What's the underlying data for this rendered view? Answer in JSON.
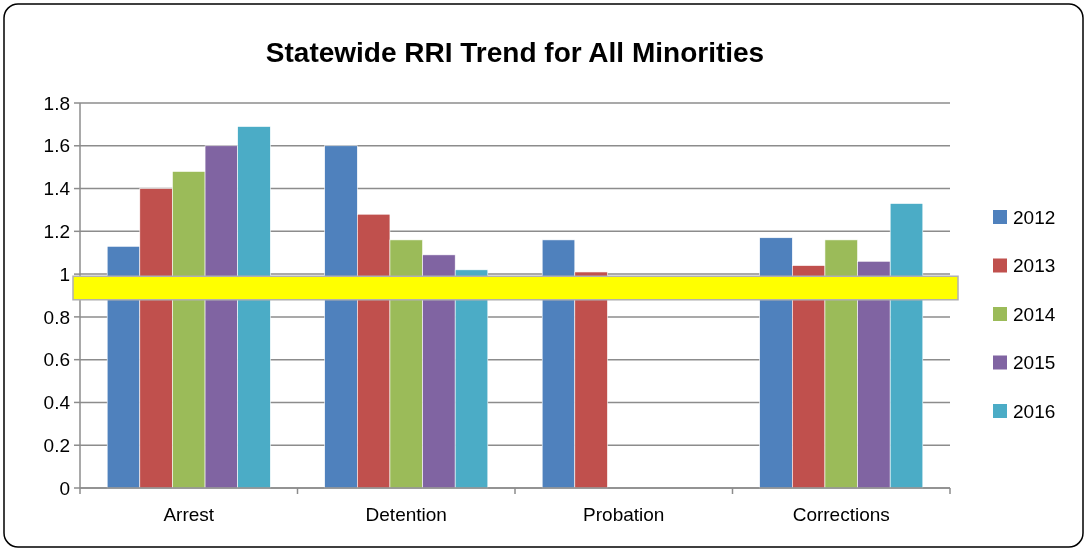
{
  "chart_data": {
    "type": "bar",
    "title": "Statewide RRI Trend for All Minorities",
    "categories": [
      "Arrest",
      "Detention",
      "Probation",
      "Corrections"
    ],
    "series": [
      {
        "name": "2012",
        "color": "#4f81bd",
        "values": [
          1.13,
          1.6,
          1.16,
          1.17
        ]
      },
      {
        "name": "2013",
        "color": "#c0504d",
        "values": [
          1.4,
          1.28,
          1.01,
          1.04
        ]
      },
      {
        "name": "2014",
        "color": "#9bbb59",
        "values": [
          1.48,
          1.16,
          null,
          1.16
        ]
      },
      {
        "name": "2015",
        "color": "#8064a2",
        "values": [
          1.6,
          1.09,
          null,
          1.06
        ]
      },
      {
        "name": "2016",
        "color": "#4bacc6",
        "values": [
          1.69,
          1.02,
          null,
          1.33
        ]
      }
    ],
    "ylim": [
      0,
      1.8
    ],
    "yticks": [
      0,
      0.2,
      0.4,
      0.6,
      0.8,
      1,
      1.2,
      1.4,
      1.6,
      1.8
    ],
    "grid": "y",
    "legend": "right",
    "bands": [
      {
        "axis": "y",
        "from": 0.88,
        "to": 0.99,
        "color": "#ffff00"
      }
    ]
  }
}
